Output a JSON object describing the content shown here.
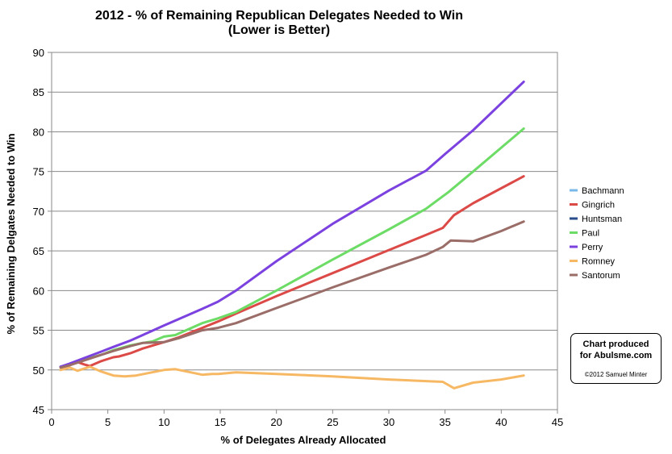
{
  "chart_data": {
    "type": "line",
    "title": "2012 - % of Remaining Republican Delegates Needed to Win",
    "subtitle": "(Lower is Better)",
    "xlabel": "% of Delegates Already Allocated",
    "ylabel": "% of Remaining Delgates Needed to Win",
    "xlim": [
      0,
      45
    ],
    "ylim": [
      45,
      90
    ],
    "xticks": [
      "0",
      "5",
      "10",
      "15",
      "20",
      "25",
      "30",
      "35",
      "40",
      "45"
    ],
    "yticks": [
      "45",
      "50",
      "55",
      "60",
      "65",
      "70",
      "75",
      "80",
      "85",
      "90"
    ],
    "grid": "horizontal",
    "legend_position": "right",
    "series": [
      {
        "name": "Bachmann",
        "color": "#79b8e8",
        "points": [
          [
            0.8,
            50.4
          ],
          [
            1.6,
            50.6
          ]
        ]
      },
      {
        "name": "Gingrich",
        "color": "#dc4a48",
        "points": [
          [
            0.8,
            50.3
          ],
          [
            1.6,
            50.6
          ],
          [
            2.3,
            51.0
          ],
          [
            2.9,
            50.7
          ],
          [
            3.4,
            50.5
          ],
          [
            4.4,
            51.1
          ],
          [
            5.5,
            51.6
          ],
          [
            6.0,
            51.7
          ],
          [
            7.0,
            52.1
          ],
          [
            8.1,
            52.7
          ],
          [
            10.0,
            53.5
          ],
          [
            11.3,
            54.1
          ],
          [
            13.4,
            55.3
          ],
          [
            14.8,
            56.1
          ],
          [
            16.4,
            57.1
          ],
          [
            20.0,
            59.3
          ],
          [
            25.0,
            62.2
          ],
          [
            30.0,
            65.1
          ],
          [
            33.3,
            67.0
          ],
          [
            34.8,
            67.9
          ],
          [
            35.8,
            69.5
          ],
          [
            37.5,
            71.0
          ],
          [
            42.0,
            74.4
          ]
        ]
      },
      {
        "name": "Huntsman",
        "color": "#2a4e8b",
        "points": [
          [
            0.8,
            50.4
          ],
          [
            1.6,
            50.7
          ],
          [
            2.3,
            51.0
          ]
        ]
      },
      {
        "name": "Paul",
        "color": "#6ddc66",
        "points": [
          [
            0.8,
            50.3
          ],
          [
            1.6,
            50.7
          ],
          [
            2.9,
            51.3
          ],
          [
            4.4,
            51.9
          ],
          [
            5.5,
            52.5
          ],
          [
            7.0,
            53.1
          ],
          [
            8.1,
            53.4
          ],
          [
            9.0,
            53.6
          ],
          [
            10.0,
            54.2
          ],
          [
            11.0,
            54.4
          ],
          [
            13.4,
            55.9
          ],
          [
            14.8,
            56.5
          ],
          [
            16.4,
            57.3
          ],
          [
            20.0,
            60.0
          ],
          [
            25.0,
            63.9
          ],
          [
            30.0,
            67.7
          ],
          [
            33.3,
            70.3
          ],
          [
            35.3,
            72.4
          ],
          [
            37.5,
            75.0
          ],
          [
            42.0,
            80.4
          ]
        ]
      },
      {
        "name": "Perry",
        "color": "#7c42e0",
        "points": [
          [
            0.8,
            50.4
          ],
          [
            1.6,
            50.8
          ],
          [
            2.9,
            51.5
          ],
          [
            4.4,
            52.3
          ],
          [
            5.5,
            52.9
          ],
          [
            7.0,
            53.7
          ],
          [
            8.1,
            54.4
          ],
          [
            10.0,
            55.6
          ],
          [
            11.3,
            56.4
          ],
          [
            13.4,
            57.7
          ],
          [
            14.8,
            58.6
          ],
          [
            16.4,
            60.0
          ],
          [
            20.0,
            63.7
          ],
          [
            25.0,
            68.4
          ],
          [
            30.0,
            72.6
          ],
          [
            33.3,
            75.1
          ],
          [
            35.0,
            77.2
          ],
          [
            37.5,
            80.2
          ],
          [
            42.0,
            86.3
          ]
        ]
      },
      {
        "name": "Romney",
        "color": "#f7b864",
        "points": [
          [
            0.8,
            50.0
          ],
          [
            1.6,
            50.3
          ],
          [
            2.3,
            49.9
          ],
          [
            3.4,
            50.4
          ],
          [
            4.4,
            49.8
          ],
          [
            5.5,
            49.3
          ],
          [
            6.5,
            49.2
          ],
          [
            7.5,
            49.3
          ],
          [
            10.0,
            50.0
          ],
          [
            11.0,
            50.1
          ],
          [
            13.4,
            49.4
          ],
          [
            14.3,
            49.5
          ],
          [
            14.8,
            49.5
          ],
          [
            16.4,
            49.7
          ],
          [
            20.0,
            49.5
          ],
          [
            25.0,
            49.2
          ],
          [
            30.0,
            48.8
          ],
          [
            33.3,
            48.6
          ],
          [
            34.8,
            48.5
          ],
          [
            35.8,
            47.7
          ],
          [
            37.5,
            48.4
          ],
          [
            40.0,
            48.8
          ],
          [
            42.0,
            49.3
          ]
        ]
      },
      {
        "name": "Santorum",
        "color": "#9a6d68",
        "points": [
          [
            0.8,
            50.3
          ],
          [
            1.6,
            50.6
          ],
          [
            2.9,
            51.2
          ],
          [
            4.4,
            51.9
          ],
          [
            5.5,
            52.4
          ],
          [
            7.0,
            53.0
          ],
          [
            8.1,
            53.4
          ],
          [
            10.0,
            53.5
          ],
          [
            11.3,
            54.0
          ],
          [
            13.4,
            55.0
          ],
          [
            14.8,
            55.3
          ],
          [
            16.4,
            55.9
          ],
          [
            20.0,
            57.8
          ],
          [
            25.0,
            60.4
          ],
          [
            30.0,
            62.9
          ],
          [
            33.3,
            64.5
          ],
          [
            34.8,
            65.5
          ],
          [
            35.5,
            66.3
          ],
          [
            37.5,
            66.2
          ],
          [
            40.0,
            67.5
          ],
          [
            42.0,
            68.7
          ]
        ]
      }
    ]
  },
  "credit": {
    "line1": "Chart produced",
    "line2": "for Abulsme.com",
    "copyright": "©2012 Samuel Minter"
  }
}
